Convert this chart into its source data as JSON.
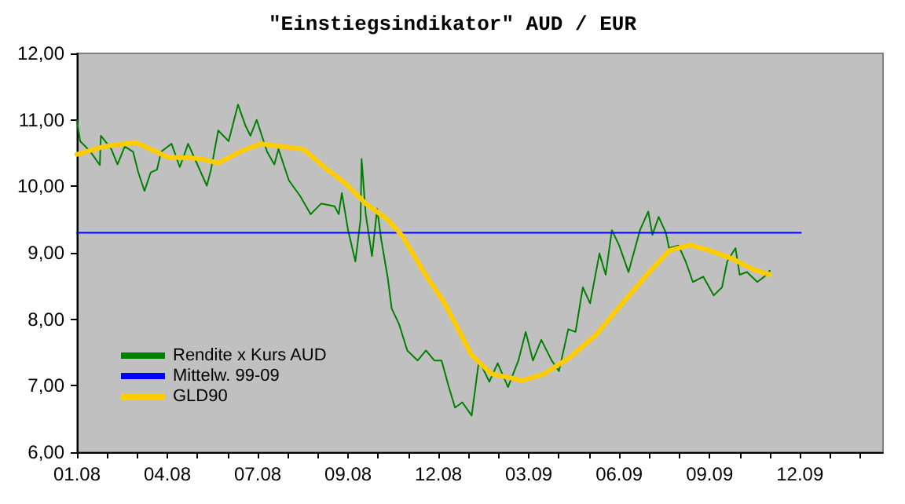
{
  "chart_data": {
    "type": "line",
    "title": "\"Einstiegsindikator\" AUD / EUR",
    "xlim": [
      "2008-01-10",
      "2010-02-24"
    ],
    "xticks": [
      {
        "value": "2008-01-10",
        "label": "01.08"
      },
      {
        "value": "2008-02-08",
        "label": null
      },
      {
        "value": "2008-03-08",
        "label": null
      },
      {
        "value": "2008-04-06",
        "label": "04.08"
      },
      {
        "value": "2008-05-05",
        "label": null
      },
      {
        "value": "2008-06-03",
        "label": null
      },
      {
        "value": "2008-07-02",
        "label": "07.08"
      },
      {
        "value": "2008-07-31",
        "label": null
      },
      {
        "value": "2008-08-29",
        "label": null
      },
      {
        "value": "2008-09-27",
        "label": "09.08"
      },
      {
        "value": "2008-10-26",
        "label": null
      },
      {
        "value": "2008-11-24",
        "label": null
      },
      {
        "value": "2008-12-23",
        "label": "12.08"
      },
      {
        "value": "2009-01-21",
        "label": null
      },
      {
        "value": "2009-02-19",
        "label": null
      },
      {
        "value": "2009-03-20",
        "label": "03.09"
      },
      {
        "value": "2009-04-18",
        "label": null
      },
      {
        "value": "2009-05-17",
        "label": null
      },
      {
        "value": "2009-06-15",
        "label": "06.09"
      },
      {
        "value": "2009-07-14",
        "label": null
      },
      {
        "value": "2009-08-12",
        "label": null
      },
      {
        "value": "2009-09-10",
        "label": "09.09"
      },
      {
        "value": "2009-10-09",
        "label": null
      },
      {
        "value": "2009-11-07",
        "label": null
      },
      {
        "value": "2009-12-06",
        "label": "12.09"
      },
      {
        "value": "2010-01-04",
        "label": null
      },
      {
        "value": "2010-02-02",
        "label": null
      }
    ],
    "ylim": [
      6,
      12
    ],
    "yticks": [
      {
        "value": 6,
        "label": "6,00"
      },
      {
        "value": 7,
        "label": "7,00"
      },
      {
        "value": 8,
        "label": "8,00"
      },
      {
        "value": 9,
        "label": "9,00"
      },
      {
        "value": 10,
        "label": "10,00"
      },
      {
        "value": 11,
        "label": "11,00"
      },
      {
        "value": 12,
        "label": "12,00"
      }
    ],
    "grid": false,
    "legend": "bottom left",
    "marker": "none",
    "line_style": "solid",
    "series": [
      {
        "name": "Rendite x Kurs AUD",
        "color": "#008000",
        "x": [
          "2008-01-10",
          "2008-01-13",
          "2008-01-23",
          "2008-02-01",
          "2008-02-02",
          "2008-02-12",
          "2008-02-18",
          "2008-02-25",
          "2008-03-04",
          "2008-03-09",
          "2008-03-15",
          "2008-03-21",
          "2008-03-27",
          "2008-03-31",
          "2008-04-10",
          "2008-04-18",
          "2008-04-26",
          "2008-05-06",
          "2008-05-14",
          "2008-05-18",
          "2008-05-25",
          "2008-06-04",
          "2008-06-13",
          "2008-06-20",
          "2008-06-25",
          "2008-07-01",
          "2008-07-11",
          "2008-07-18",
          "2008-07-22",
          "2008-08-01",
          "2008-08-12",
          "2008-08-22",
          "2008-09-01",
          "2008-09-14",
          "2008-09-18",
          "2008-09-21",
          "2008-09-27",
          "2008-10-04",
          "2008-10-09",
          "2008-10-10",
          "2008-10-14",
          "2008-10-20",
          "2008-10-25",
          "2008-10-29",
          "2008-11-04",
          "2008-11-08",
          "2008-11-15",
          "2008-11-23",
          "2008-12-03",
          "2008-12-11",
          "2008-12-19",
          "2008-12-26",
          "2009-01-02",
          "2009-01-08",
          "2009-01-15",
          "2009-01-24",
          "2009-01-31",
          "2009-02-10",
          "2009-02-18",
          "2009-02-28",
          "2009-03-10",
          "2009-03-17",
          "2009-03-24",
          "2009-04-01",
          "2009-04-11",
          "2009-04-18",
          "2009-04-27",
          "2009-05-04",
          "2009-05-11",
          "2009-05-18",
          "2009-05-27",
          "2009-06-02",
          "2009-06-08",
          "2009-06-15",
          "2009-06-24",
          "2009-07-01",
          "2009-07-05",
          "2009-07-13",
          "2009-07-17",
          "2009-07-23",
          "2009-07-30",
          "2009-08-02",
          "2009-08-11",
          "2009-08-18",
          "2009-08-25",
          "2009-09-04",
          "2009-09-14",
          "2009-09-22",
          "2009-09-27",
          "2009-10-05",
          "2009-10-09",
          "2009-10-16",
          "2009-10-26",
          "2009-11-04",
          "2009-11-07"
        ],
        "values": [
          10.99,
          10.68,
          10.52,
          10.32,
          10.76,
          10.56,
          10.33,
          10.6,
          10.52,
          10.21,
          9.93,
          10.21,
          10.25,
          10.52,
          10.64,
          10.29,
          10.64,
          10.29,
          10.01,
          10.25,
          10.84,
          10.68,
          11.23,
          10.92,
          10.76,
          11.0,
          10.52,
          10.33,
          10.56,
          10.09,
          9.85,
          9.58,
          9.74,
          9.7,
          9.58,
          9.9,
          9.34,
          8.87,
          9.5,
          10.41,
          9.58,
          8.95,
          9.66,
          9.19,
          8.64,
          8.16,
          7.93,
          7.53,
          7.38,
          7.53,
          7.38,
          7.38,
          6.98,
          6.67,
          6.75,
          6.55,
          7.38,
          7.06,
          7.34,
          6.98,
          7.38,
          7.81,
          7.38,
          7.69,
          7.38,
          7.22,
          7.85,
          7.81,
          8.48,
          8.24,
          8.99,
          8.67,
          9.34,
          9.11,
          8.71,
          9.11,
          9.34,
          9.62,
          9.27,
          9.54,
          9.3,
          9.07,
          9.11,
          8.87,
          8.56,
          8.64,
          8.36,
          8.48,
          8.87,
          9.07,
          8.67,
          8.71,
          8.56,
          8.67,
          8.73
        ]
      },
      {
        "name": "Mittelw. 99-09",
        "color": "#0000ff",
        "x": [
          "2008-01-10",
          "2009-12-07"
        ],
        "values": [
          9.3,
          9.3
        ]
      },
      {
        "name": "GLD90",
        "color": "#ffcc00",
        "x": [
          "2008-01-10",
          "2008-02-05",
          "2008-03-07",
          "2008-04-06",
          "2008-05-06",
          "2008-05-25",
          "2008-06-15",
          "2008-07-05",
          "2008-07-25",
          "2008-08-15",
          "2008-09-04",
          "2008-09-24",
          "2008-10-14",
          "2008-11-04",
          "2008-11-18",
          "2008-12-09",
          "2008-12-29",
          "2009-01-24",
          "2009-02-12",
          "2009-03-14",
          "2009-04-04",
          "2009-04-28",
          "2009-05-24",
          "2009-06-18",
          "2009-07-14",
          "2009-08-02",
          "2009-08-22",
          "2009-09-11",
          "2009-10-02",
          "2009-10-22",
          "2009-11-07"
        ],
        "values": [
          10.48,
          10.6,
          10.66,
          10.44,
          10.42,
          10.35,
          10.52,
          10.64,
          10.6,
          10.56,
          10.29,
          10.05,
          9.74,
          9.5,
          9.26,
          8.71,
          8.24,
          7.46,
          7.18,
          7.08,
          7.18,
          7.42,
          7.77,
          8.24,
          8.71,
          9.03,
          9.12,
          9.03,
          8.91,
          8.75,
          8.67
        ]
      }
    ]
  }
}
